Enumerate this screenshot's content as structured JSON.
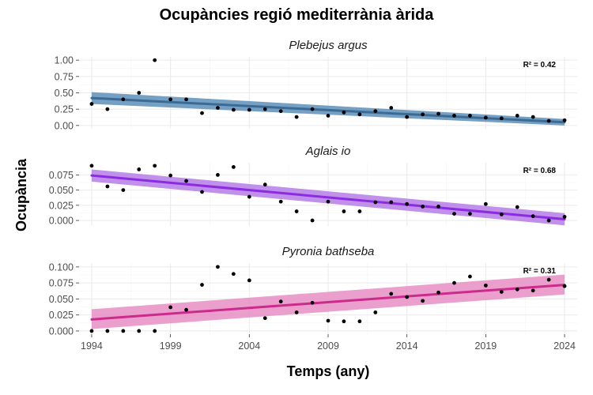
{
  "chart_data": {
    "type": "scatter",
    "title": "Ocupàncies regió mediterrània àrida",
    "xlabel": "Temps (any)",
    "ylabel": "Ocupància",
    "xlim": [
      1993.2,
      2024.8
    ],
    "x_ticks": [
      1994,
      1999,
      2004,
      2009,
      2014,
      2019,
      2024
    ],
    "x_tick_labels": [
      "1994",
      "1999",
      "2004",
      "2009",
      "2014",
      "2019",
      "2024"
    ],
    "grid": true,
    "facets": [
      {
        "name": "Plebejus argus",
        "color": "#3b6b94",
        "band_color": "#5d8fb8",
        "ylim": [
          -0.05,
          1.05
        ],
        "y_ticks": [
          0,
          0.25,
          0.5,
          0.75,
          1.0
        ],
        "y_tick_labels": [
          "0.00",
          "0.25",
          "0.50",
          "0.75",
          "1.00"
        ],
        "r2_label": "R² = 0.42",
        "trend": {
          "x": [
            1994,
            2024
          ],
          "y": [
            0.42,
            0.05
          ]
        },
        "band": {
          "x": [
            1994,
            2024
          ],
          "lower": [
            0.33,
            0.0
          ],
          "upper": [
            0.51,
            0.1
          ]
        },
        "points": {
          "x": [
            1994,
            1995,
            1996,
            1997,
            1998,
            1999,
            2000,
            2001,
            2002,
            2003,
            2004,
            2005,
            2006,
            2007,
            2008,
            2009,
            2010,
            2011,
            2012,
            2013,
            2014,
            2015,
            2016,
            2017,
            2018,
            2019,
            2020,
            2021,
            2022,
            2023,
            2024
          ],
          "y": [
            0.33,
            0.25,
            0.4,
            0.5,
            1.0,
            0.4,
            0.4,
            0.19,
            0.27,
            0.24,
            0.24,
            0.25,
            0.22,
            0.13,
            0.25,
            0.15,
            0.2,
            0.17,
            0.22,
            0.27,
            0.13,
            0.17,
            0.18,
            0.15,
            0.15,
            0.12,
            0.11,
            0.15,
            0.13,
            0.07,
            0.08
          ]
        }
      },
      {
        "name": "Aglais io",
        "color": "#8b2be2",
        "band_color": "#b57ce8",
        "ylim": [
          -0.009,
          0.095
        ],
        "y_ticks": [
          0,
          0.025,
          0.05,
          0.075
        ],
        "y_tick_labels": [
          "0.000",
          "0.025",
          "0.050",
          "0.075"
        ],
        "r2_label": "R² = 0.68",
        "trend": {
          "x": [
            1994,
            2024
          ],
          "y": [
            0.074,
            0.002
          ]
        },
        "band": {
          "x": [
            1994,
            2024
          ],
          "lower": [
            0.064,
            -0.008
          ],
          "upper": [
            0.084,
            0.012
          ]
        },
        "points": {
          "x": [
            1994,
            1995,
            1996,
            1997,
            1998,
            1999,
            2000,
            2001,
            2002,
            2003,
            2004,
            2005,
            2006,
            2007,
            2008,
            2009,
            2010,
            2011,
            2012,
            2013,
            2014,
            2015,
            2016,
            2017,
            2018,
            2019,
            2020,
            2021,
            2022,
            2023,
            2024
          ],
          "y": [
            0.09,
            0.056,
            0.05,
            0.084,
            0.09,
            0.074,
            0.065,
            0.047,
            0.075,
            0.088,
            0.039,
            0.059,
            0.031,
            0.015,
            0.0,
            0.031,
            0.015,
            0.015,
            0.03,
            0.03,
            0.027,
            0.023,
            0.023,
            0.011,
            0.011,
            0.027,
            0.01,
            0.022,
            0.007,
            0.0,
            0.006
          ]
        }
      },
      {
        "name": "Pyronia bathseba",
        "color": "#cc2a8c",
        "band_color": "#e88ec4",
        "ylim": [
          -0.005,
          0.106
        ],
        "y_ticks": [
          0,
          0.025,
          0.05,
          0.075,
          0.1
        ],
        "y_tick_labels": [
          "0.000",
          "0.025",
          "0.050",
          "0.075",
          "0.100"
        ],
        "r2_label": "R² = 0.31",
        "trend": {
          "x": [
            1994,
            2024
          ],
          "y": [
            0.018,
            0.072
          ]
        },
        "band": {
          "x": [
            1994,
            2024
          ],
          "lower": [
            0.003,
            0.057
          ],
          "upper": [
            0.034,
            0.088
          ]
        },
        "points": {
          "x": [
            1994,
            1995,
            1996,
            1997,
            1998,
            1999,
            2000,
            2001,
            2002,
            2003,
            2004,
            2005,
            2006,
            2007,
            2008,
            2009,
            2010,
            2011,
            2012,
            2013,
            2014,
            2015,
            2016,
            2017,
            2018,
            2019,
            2020,
            2021,
            2022,
            2023,
            2024
          ],
          "y": [
            0.0,
            0.0,
            0.0,
            0.0,
            0.0,
            0.037,
            0.033,
            0.072,
            0.1,
            0.089,
            0.079,
            0.02,
            0.046,
            0.029,
            0.044,
            0.016,
            0.015,
            0.015,
            0.029,
            0.058,
            0.053,
            0.047,
            0.06,
            0.075,
            0.085,
            0.071,
            0.061,
            0.065,
            0.063,
            0.08,
            0.07
          ]
        }
      }
    ]
  }
}
